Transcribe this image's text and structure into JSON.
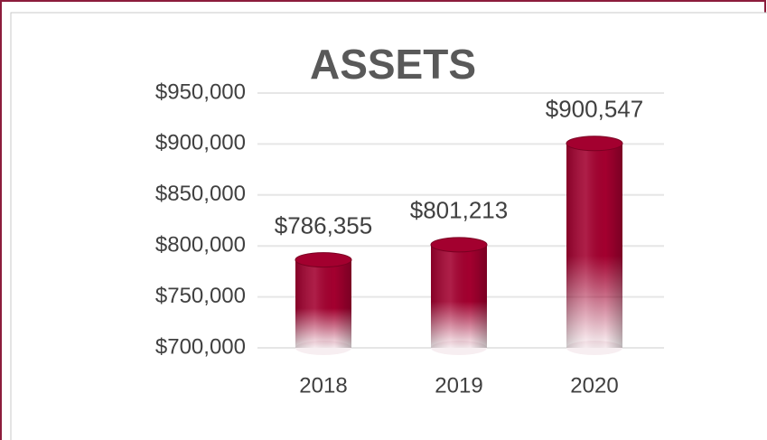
{
  "chart_data": {
    "type": "bar",
    "title": "ASSETS",
    "categories": [
      "2018",
      "2019",
      "2020"
    ],
    "values": [
      786355,
      801213,
      900547
    ],
    "value_labels": [
      "$786,355",
      "$801,213",
      "$900,547"
    ],
    "color": "#a3002f",
    "ylim": [
      700000,
      950000
    ],
    "yticks": [
      {
        "value": 700000,
        "label": "$700,000"
      },
      {
        "value": 750000,
        "label": "$750,000"
      },
      {
        "value": 800000,
        "label": "$800,000"
      },
      {
        "value": 850000,
        "label": "$850,000"
      },
      {
        "value": 900000,
        "label": "$900,000"
      },
      {
        "value": 950000,
        "label": "$950,000"
      }
    ],
    "grid": true
  }
}
